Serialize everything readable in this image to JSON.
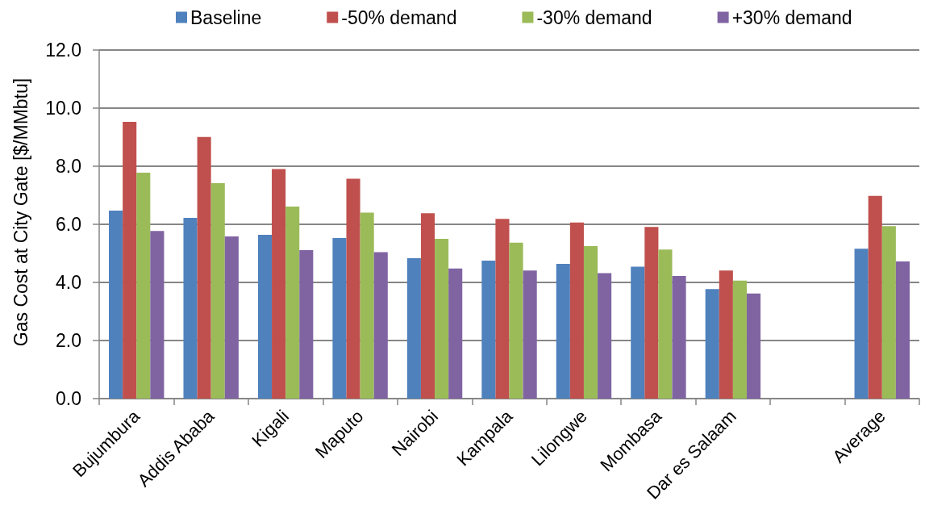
{
  "chart_data": {
    "type": "bar",
    "ylabel": "Gas Cost at City Gate [$/MMbtu]",
    "categories": [
      "Bujumbura",
      "Addis Ababa",
      "Kigali",
      "Maputo",
      "Nairobi",
      "Kampala",
      "Lilongwe",
      "Mombasa",
      "Dar es Salaam",
      null,
      "Average"
    ],
    "series": [
      {
        "name": "Baseline",
        "color": "#4f81bd",
        "values": [
          6.47,
          6.22,
          5.64,
          5.53,
          4.83,
          4.75,
          4.64,
          4.54,
          3.77,
          null,
          5.16
        ]
      },
      {
        "name": "-50% demand",
        "color": "#c0504d",
        "values": [
          9.53,
          9.01,
          7.9,
          7.57,
          6.38,
          6.19,
          6.06,
          5.91,
          4.41,
          null,
          6.98
        ]
      },
      {
        "name": "-30% demand",
        "color": "#9bbb59",
        "values": [
          7.78,
          7.42,
          6.61,
          6.4,
          5.5,
          5.37,
          5.25,
          5.13,
          4.06,
          null,
          5.94
        ]
      },
      {
        "name": "+30% demand",
        "color": "#8064a2",
        "values": [
          5.77,
          5.58,
          5.11,
          5.04,
          4.48,
          4.41,
          4.32,
          4.22,
          3.62,
          null,
          4.72
        ]
      }
    ],
    "ylim": [
      0,
      12
    ],
    "yticks": [
      {
        "value": 0,
        "label": "0.0"
      },
      {
        "value": 2,
        "label": "2.0"
      },
      {
        "value": 4,
        "label": "4.0"
      },
      {
        "value": 6,
        "label": "6.0"
      },
      {
        "value": 8,
        "label": "8.0"
      },
      {
        "value": 10,
        "label": "10.0"
      },
      {
        "value": 12,
        "label": "12.0"
      }
    ],
    "grid": "y",
    "legend": "top"
  }
}
